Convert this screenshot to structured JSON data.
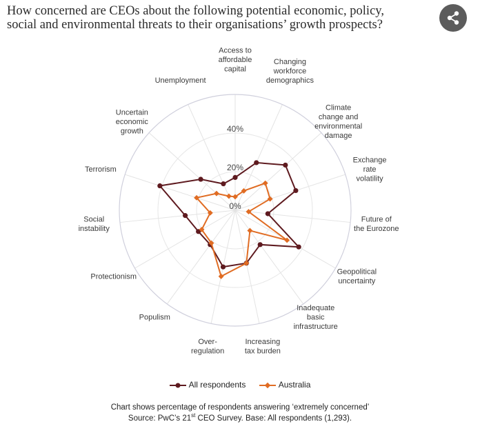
{
  "header": {
    "title": "How concerned are CEOs about the following potential economic, policy, social and environmental threats to their organisations’ growth prospects?",
    "share_icon": "share-icon"
  },
  "chart_data": {
    "type": "radar",
    "title": "How concerned are CEOs about the following potential economic, policy, social and environmental threats to their organisations’ growth prospects?",
    "axes": [
      "Access to affordable capital",
      "Changing workforce demographics",
      "Climate change and environmental damage",
      "Exchange rate volatility",
      "Future of the Eurozone",
      "Geopolitical uncertainty",
      "Inadequate basic infrastructure",
      "Increasing tax burden",
      "Over-regulation",
      "Populism",
      "Protectionism",
      "Social instability",
      "Terrorism",
      "Uncertain economic growth",
      "Unemployment"
    ],
    "rlim": [
      0,
      60
    ],
    "ticks": [
      0,
      20,
      40
    ],
    "tick_labels": [
      "0%",
      "20%",
      "40%"
    ],
    "grid": true,
    "legend_position": "bottom",
    "series": [
      {
        "name": "All respondents",
        "color": "#5e1a1f",
        "values": [
          17,
          27,
          35,
          33,
          17,
          38,
          22,
          28,
          30,
          22,
          22,
          26,
          41,
          24,
          15
        ]
      },
      {
        "name": "Australia",
        "color": "#e06c23",
        "values": [
          7,
          11,
          21,
          19,
          7,
          31,
          13,
          28,
          35,
          21,
          20,
          13,
          21,
          13,
          8
        ]
      }
    ]
  },
  "legend": {
    "items": [
      "All respondents",
      "Australia"
    ]
  },
  "footer": {
    "note": "Chart shows percentage of respondents answering ‘extremely concerned’",
    "source_prefix": "Source: PwC’s 21",
    "source_sup": "st",
    "source_suffix": " CEO Survey. Base: All respondents (1,293)."
  }
}
